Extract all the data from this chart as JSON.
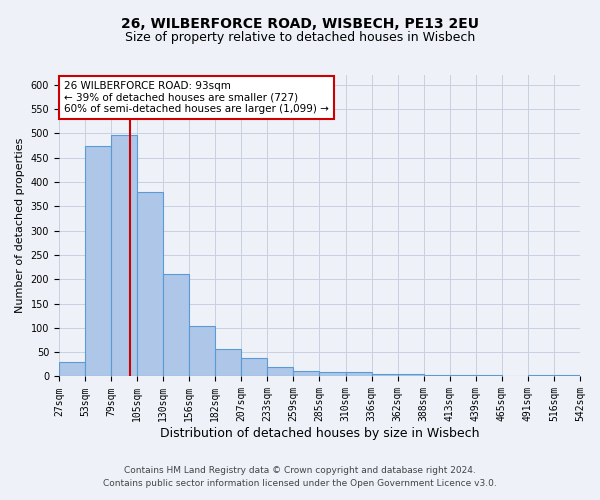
{
  "title_line1": "26, WILBERFORCE ROAD, WISBECH, PE13 2EU",
  "title_line2": "Size of property relative to detached houses in Wisbech",
  "xlabel": "Distribution of detached houses by size in Wisbech",
  "ylabel": "Number of detached properties",
  "footer_line1": "Contains HM Land Registry data © Crown copyright and database right 2024.",
  "footer_line2": "Contains public sector information licensed under the Open Government Licence v3.0.",
  "bin_labels": [
    "27sqm",
    "53sqm",
    "79sqm",
    "105sqm",
    "130sqm",
    "156sqm",
    "182sqm",
    "207sqm",
    "233sqm",
    "259sqm",
    "285sqm",
    "310sqm",
    "336sqm",
    "362sqm",
    "388sqm",
    "413sqm",
    "439sqm",
    "465sqm",
    "491sqm",
    "516sqm",
    "542sqm"
  ],
  "bar_values": [
    30,
    475,
    497,
    380,
    210,
    103,
    56,
    37,
    19,
    12,
    9,
    10,
    5,
    5,
    2,
    3,
    4,
    1,
    3,
    2
  ],
  "bar_color": "#aec6e8",
  "bar_edge_color": "#5b9bd5",
  "bar_edge_width": 0.8,
  "vline_x": 2.72,
  "vline_color": "#cc0000",
  "ylim": [
    0,
    620
  ],
  "yticks": [
    0,
    50,
    100,
    150,
    200,
    250,
    300,
    350,
    400,
    450,
    500,
    550,
    600
  ],
  "annotation_text": "26 WILBERFORCE ROAD: 93sqm\n← 39% of detached houses are smaller (727)\n60% of semi-detached houses are larger (1,099) →",
  "annotation_box_color": "#cc0000",
  "annotation_text_color": "#000000",
  "background_color": "#eef2f8",
  "grid_color": "#c8d0e0",
  "title_fontsize": 10,
  "subtitle_fontsize": 9,
  "axis_label_fontsize": 8,
  "tick_fontsize": 7,
  "annotation_fontsize": 7.5,
  "footer_fontsize": 6.5
}
